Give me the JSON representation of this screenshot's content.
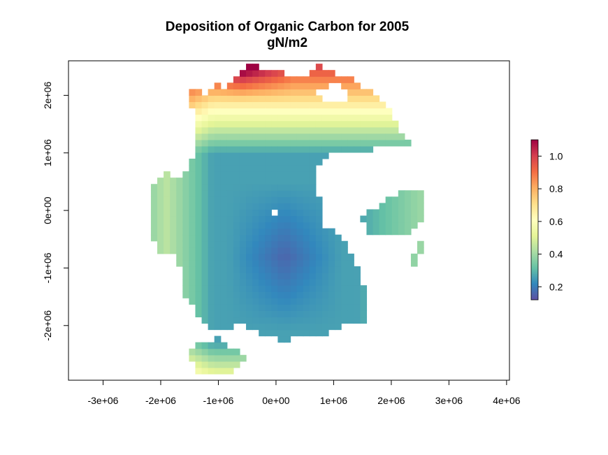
{
  "chart_data": {
    "type": "heatmap",
    "title": "Deposition of Organic Carbon for 2005",
    "subtitle": "gN/m2",
    "xlabel": "",
    "ylabel": "",
    "xlim": [
      -3600000,
      4050000
    ],
    "ylim": [
      -2950000,
      2600000
    ],
    "x_ticks": [
      -3000000,
      -2000000,
      -1000000,
      0,
      1000000,
      2000000,
      3000000,
      4000000
    ],
    "x_tick_labels": [
      "-3e+06",
      "-2e+06",
      "-1e+06",
      "0e+00",
      "1e+06",
      "2e+06",
      "3e+06",
      "4e+06"
    ],
    "y_ticks": [
      2000000,
      1000000,
      0,
      -1000000,
      -2000000
    ],
    "y_tick_labels": [
      "2e+06",
      "1e+06",
      "0e+00",
      "-1e+06",
      "-2e+06"
    ],
    "colorbar": {
      "range": [
        0.12,
        1.1
      ],
      "ticks": [
        0.2,
        0.4,
        0.6,
        0.8,
        1.0
      ],
      "tick_labels": [
        "0.2",
        "0.4",
        "0.6",
        "0.8",
        "1.0"
      ],
      "palette": [
        "#5E4FA2",
        "#3288BD",
        "#66C2A5",
        "#ABDDA4",
        "#E6F598",
        "#FFFFBF",
        "#FEE08B",
        "#FDAE61",
        "#F46D43",
        "#D53E4F",
        "#9E0142"
      ]
    },
    "grid": false,
    "legend_position": "right"
  }
}
